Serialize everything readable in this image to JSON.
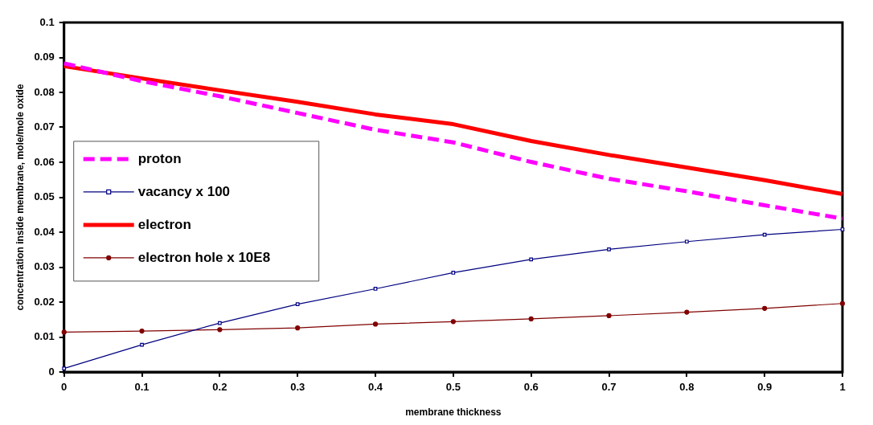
{
  "chart_data": {
    "type": "line",
    "xlabel": "membrane thickness",
    "ylabel": "concentration inside membrane, mole/mole oxide",
    "x": [
      0,
      0.1,
      0.2,
      0.3,
      0.4,
      0.5,
      0.6,
      0.7,
      0.8,
      0.9,
      1
    ],
    "xlim": [
      0,
      1
    ],
    "xticks": [
      0,
      0.1,
      0.2,
      0.3,
      0.4,
      0.5,
      0.6,
      0.7,
      0.8,
      0.9,
      1
    ],
    "ylim": [
      0,
      0.1
    ],
    "yticks": [
      0,
      0.01,
      0.02,
      0.03,
      0.04,
      0.05,
      0.06,
      0.07,
      0.08,
      0.09,
      0.1
    ],
    "grid": false,
    "legend": "left",
    "series": [
      {
        "name": "proton",
        "color": "#ff00ff",
        "line_style": "dashed",
        "marker": "none",
        "values": [
          0.0883,
          0.0832,
          0.0789,
          0.0741,
          0.0693,
          0.0657,
          0.0601,
          0.0553,
          0.0517,
          0.0477,
          0.0439
        ]
      },
      {
        "name": "vacancy x 100",
        "color": "#000080",
        "marker": "square",
        "values": [
          0.001,
          0.0078,
          0.014,
          0.0194,
          0.0238,
          0.0284,
          0.0322,
          0.0351,
          0.0373,
          0.0393,
          0.0408
        ]
      },
      {
        "name": "electron",
        "color": "#ff0000",
        "marker": "none",
        "values": [
          0.0875,
          0.084,
          0.0806,
          0.0773,
          0.0737,
          0.0709,
          0.0661,
          0.0621,
          0.0585,
          0.0549,
          0.0509
        ]
      },
      {
        "name": "electron hole x 10E8",
        "color": "#800000",
        "marker": "circle",
        "values": [
          0.0114,
          0.0117,
          0.0121,
          0.0126,
          0.0137,
          0.0144,
          0.0152,
          0.0161,
          0.0171,
          0.0182,
          0.0196
        ]
      }
    ]
  }
}
